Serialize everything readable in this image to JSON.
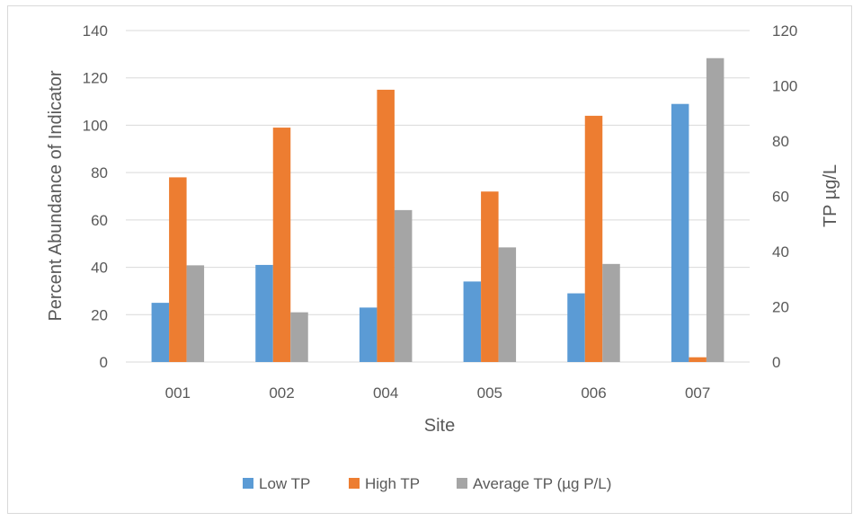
{
  "chart_data": {
    "type": "bar",
    "categories": [
      "001",
      "002",
      "004",
      "005",
      "006",
      "007"
    ],
    "series": [
      {
        "name": "Low TP",
        "values": [
          25,
          41,
          23,
          34,
          29,
          109
        ],
        "color": "#5b9bd5",
        "axis": "left"
      },
      {
        "name": "High TP",
        "values": [
          78,
          99,
          115,
          72,
          104,
          2
        ],
        "color": "#ed7d31",
        "axis": "left"
      },
      {
        "name": "Average TP (µg P/L)",
        "values": [
          35,
          18,
          55,
          41.5,
          35.5,
          110
        ],
        "color": "#a5a5a5",
        "axis": "right"
      }
    ],
    "xlabel": "Site",
    "ylabel": "Percent Abundance of Indicator",
    "y2label": "TP µg/L",
    "ylim": [
      0,
      140
    ],
    "y2lim": [
      0,
      120
    ],
    "yticks": [
      "0",
      "20",
      "40",
      "60",
      "80",
      "100",
      "120",
      "140"
    ],
    "y2ticks": [
      "0",
      "20",
      "40",
      "60",
      "80",
      "100",
      "120"
    ],
    "grid": true,
    "legend_position": "bottom"
  }
}
